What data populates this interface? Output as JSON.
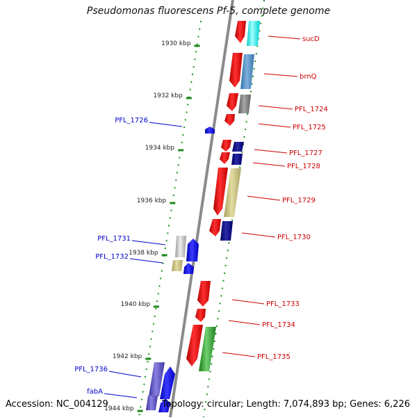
{
  "title": "Pseudomonas fluorescens Pf-5, complete genome",
  "footer": {
    "accession": "Accession: NC_004129",
    "topology": "Topology: circular; Length: 7,074,893 bp; Genes: 6,226"
  },
  "scale_labels": [
    "1930 kbp",
    "1932 kbp",
    "1934 kbp",
    "1936 kbp",
    "1938 kbp",
    "1940 kbp",
    "1942 kbp",
    "1944 kbp"
  ],
  "colors": {
    "forward_label": "#cc0000",
    "reverse_label": "#0000cc",
    "ticks": "#1a8a1a",
    "backbone": "#8a8a8a"
  },
  "genes_right": [
    {
      "label": "sucD",
      "color": "#ff0000"
    },
    {
      "label": "brnQ",
      "color": "#ff0000"
    },
    {
      "label": "PFL_1724",
      "color": "#ff0000"
    },
    {
      "label": "PFL_1725",
      "color": "#ff0000"
    },
    {
      "label": "PFL_1727",
      "color": "#ff0000"
    },
    {
      "label": "PFL_1728",
      "color": "#ff0000"
    },
    {
      "label": "PFL_1729",
      "color": "#ff0000"
    },
    {
      "label": "PFL_1730",
      "color": "#ff0000"
    },
    {
      "label": "PFL_1733",
      "color": "#ff0000"
    },
    {
      "label": "PFL_1734",
      "color": "#ff0000"
    },
    {
      "label": "PFL_1735",
      "color": "#ff0000"
    }
  ],
  "genes_left": [
    {
      "label": "PFL_1726",
      "color": "#0000ff"
    },
    {
      "label": "PFL_1731",
      "color": "#0000ff"
    },
    {
      "label": "PFL_1732",
      "color": "#0000ff"
    },
    {
      "label": "PFL_1736",
      "color": "#0000ff"
    },
    {
      "label": "fabA",
      "color": "#0000ff"
    }
  ]
}
